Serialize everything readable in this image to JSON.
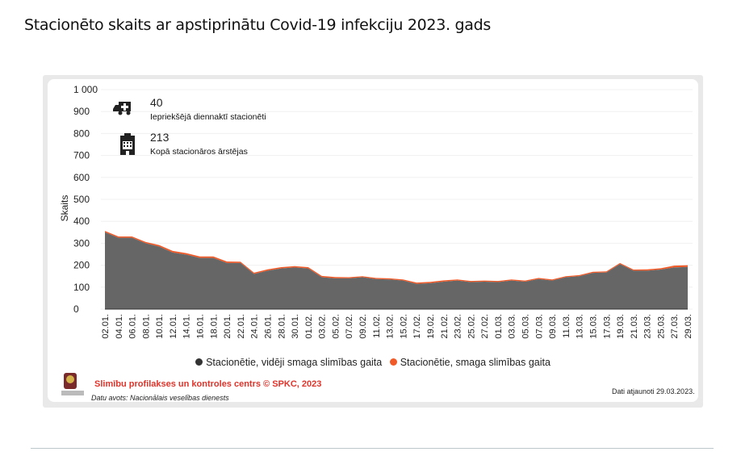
{
  "title": "Stacionēto skaits ar apstiprinātu Covid-19 infekciju 2023. gads",
  "kpis": [
    {
      "icon": "ambulance-icon",
      "value": "40",
      "label": "Iepriekšējā diennaktī stacionēti"
    },
    {
      "icon": "hospital-icon",
      "value": "213",
      "label": "Kopā stacionāros ārstējas"
    }
  ],
  "footer": {
    "org": "Slimību profilakses un kontroles centrs © SPKC, 2023",
    "source": "Datu avots: Nacionālais veselības dienests",
    "updated": "Dati atjaunoti 29.03.2023."
  },
  "chart_data": {
    "type": "area",
    "stacked": true,
    "ylabel": "Skaits",
    "ylim": [
      0,
      1000
    ],
    "yticks": [
      "0",
      "100",
      "200",
      "300",
      "400",
      "500",
      "600",
      "700",
      "800",
      "900",
      "1 000"
    ],
    "grid": true,
    "legend": "bottom",
    "categories": [
      "02.01.",
      "04.01.",
      "06.01.",
      "08.01.",
      "10.01.",
      "12.01.",
      "14.01.",
      "16.01.",
      "18.01.",
      "20.01.",
      "22.01.",
      "24.01.",
      "26.01.",
      "28.01.",
      "30.01.",
      "01.02.",
      "03.02.",
      "05.02.",
      "07.02.",
      "09.02.",
      "11.02.",
      "13.02.",
      "15.02.",
      "17.02.",
      "19.02.",
      "21.02.",
      "23.02.",
      "25.02.",
      "27.02.",
      "01.03.",
      "03.03.",
      "05.03.",
      "07.03.",
      "09.03.",
      "11.03.",
      "13.03.",
      "15.03.",
      "17.03.",
      "19.03.",
      "21.03.",
      "23.03.",
      "25.03.",
      "27.03.",
      "29.03."
    ],
    "series": [
      {
        "name": "Stacionētie, vidēji smaga slimības gaita",
        "color": "#666666",
        "values": [
          350,
          325,
          325,
          300,
          285,
          258,
          248,
          233,
          233,
          210,
          210,
          160,
          175,
          185,
          190,
          185,
          145,
          140,
          140,
          145,
          137,
          135,
          130,
          115,
          118,
          125,
          130,
          123,
          125,
          123,
          130,
          125,
          137,
          130,
          145,
          150,
          165,
          167,
          205,
          175,
          175,
          180,
          190,
          192
        ]
      },
      {
        "name": "Stacionētie, smaga slimības gaita",
        "color": "#f05a28",
        "values": [
          6,
          6,
          6,
          6,
          7,
          7,
          7,
          7,
          7,
          7,
          6,
          6,
          6,
          6,
          6,
          6,
          6,
          6,
          5,
          5,
          5,
          5,
          5,
          6,
          6,
          6,
          5,
          5,
          5,
          5,
          5,
          5,
          5,
          5,
          5,
          5,
          5,
          5,
          5,
          5,
          6,
          6,
          8,
          8
        ]
      }
    ]
  }
}
